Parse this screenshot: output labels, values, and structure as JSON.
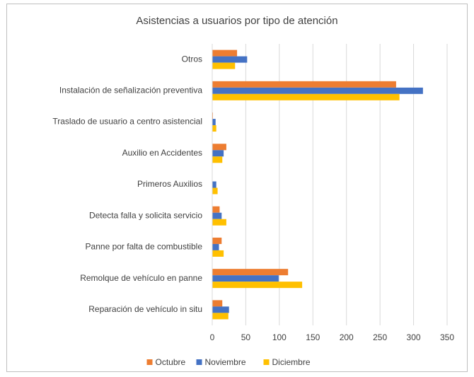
{
  "chart_data": {
    "type": "hbar",
    "title": "Asistencias a usuarios por tipo de atención",
    "categories": [
      "Otros",
      "Instalación de señalización preventiva",
      "Traslado de usuario a centro asistencial",
      "Auxilio en Accidentes",
      "Primeros Auxilios",
      "Detecta falla y solicita servicio",
      "Panne por falta de combustible",
      "Remolque de vehículo en panne",
      "Reparación de vehículo in situ"
    ],
    "series": [
      {
        "name": "Octubre",
        "color": "#ED7D31",
        "values": [
          37,
          274,
          1,
          21,
          0,
          11,
          14,
          113,
          15
        ]
      },
      {
        "name": "Noviembre",
        "color": "#4472C4",
        "values": [
          52,
          314,
          5,
          17,
          6,
          14,
          10,
          99,
          25
        ]
      },
      {
        "name": "Diciembre",
        "color": "#FFC000",
        "values": [
          34,
          279,
          6,
          15,
          8,
          21,
          17,
          134,
          24
        ]
      }
    ],
    "xlim": [
      0,
      350
    ],
    "xticks": [
      0,
      50,
      100,
      150,
      200,
      250,
      300,
      350
    ],
    "grid": true,
    "legend": "bottom"
  }
}
